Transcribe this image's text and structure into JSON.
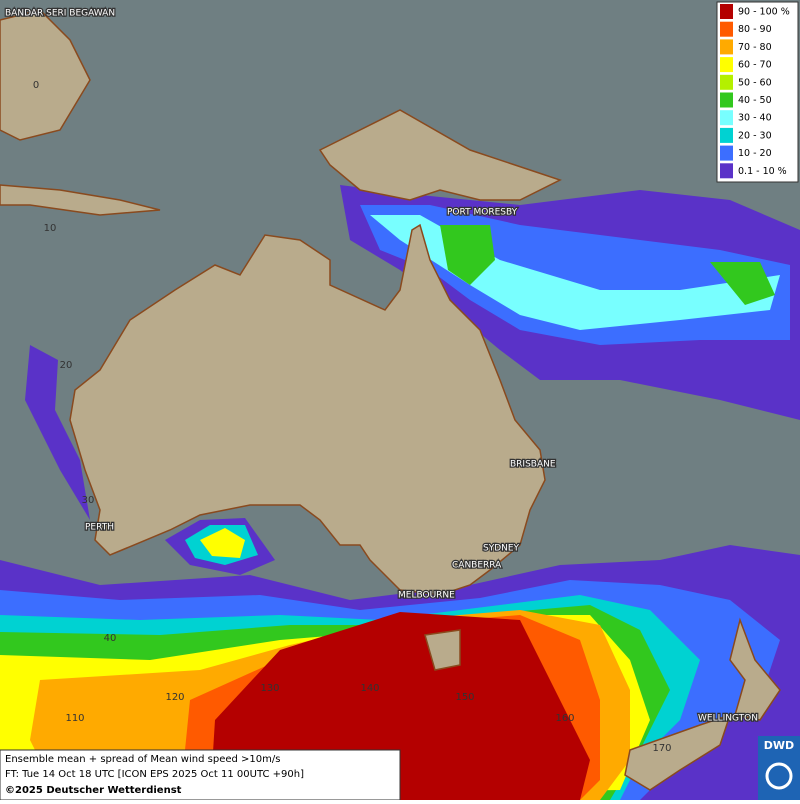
{
  "legend": {
    "entries": [
      {
        "label": "90 - 100 %",
        "color": "#b40000"
      },
      {
        "label": "80 - 90",
        "color": "#ff5a00"
      },
      {
        "label": "70 - 80",
        "color": "#ffaa00"
      },
      {
        "label": "60 - 70",
        "color": "#ffff00"
      },
      {
        "label": "50 - 60",
        "color": "#b4f000"
      },
      {
        "label": "40 - 50",
        "color": "#32c81e"
      },
      {
        "label": "30 - 40",
        "color": "#78ffff"
      },
      {
        "label": "20 - 30",
        "color": "#00d2d2"
      },
      {
        "label": "10 - 20",
        "color": "#3c6eff"
      },
      {
        "label": "0.1 - 10 %",
        "color": "#5a32c8"
      }
    ]
  },
  "places": [
    "BANDAR SERI BEGAWAN",
    "PORT MORESBY",
    "BRISBANE",
    "PERTH",
    "SYDNEY",
    "CANBERRA",
    "MELBOURNE",
    "WELLINGTON"
  ],
  "grid_labels": [
    "0",
    "10",
    "20",
    "30",
    "40",
    "110",
    "120",
    "130",
    "140",
    "150",
    "160",
    "170"
  ],
  "info": {
    "line1": "Ensemble mean + spread of Mean wind speed >10m/s",
    "line2": "FT: Tue 14 Oct 18 UTC [ICON EPS 2025 Oct 11 00UTC +90h]",
    "line3": "©2025 Deutscher Wetterdienst"
  },
  "logo": "DWD"
}
